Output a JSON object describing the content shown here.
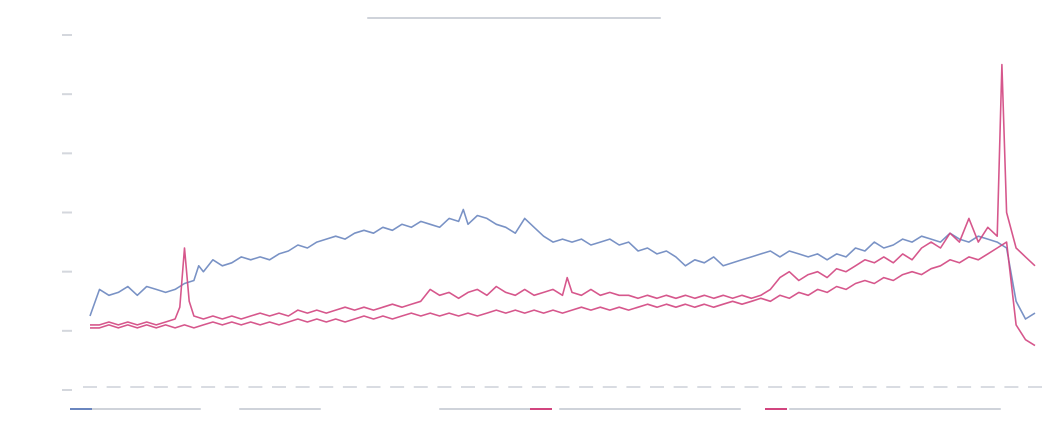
{
  "chart_data": {
    "type": "line",
    "title": "",
    "xlabel": "",
    "ylabel": "",
    "x_range": [
      0,
      1000
    ],
    "ylim": [
      -20,
      100
    ],
    "legend_position": "bottom",
    "colors": {
      "series_1": "#6a86bf",
      "series_2": "#d2457f",
      "series_3": "#d2457f"
    },
    "series": [
      {
        "points": [
          [
            0,
            5
          ],
          [
            10,
            14
          ],
          [
            20,
            12
          ],
          [
            30,
            13
          ],
          [
            40,
            15
          ],
          [
            50,
            12
          ],
          [
            60,
            15
          ],
          [
            70,
            14
          ],
          [
            80,
            13
          ],
          [
            90,
            14
          ],
          [
            100,
            16
          ],
          [
            110,
            17
          ],
          [
            115,
            22
          ],
          [
            120,
            20
          ],
          [
            130,
            24
          ],
          [
            140,
            22
          ],
          [
            150,
            23
          ],
          [
            160,
            25
          ],
          [
            170,
            24
          ],
          [
            180,
            25
          ],
          [
            190,
            24
          ],
          [
            200,
            26
          ],
          [
            210,
            27
          ],
          [
            220,
            29
          ],
          [
            230,
            28
          ],
          [
            240,
            30
          ],
          [
            250,
            31
          ],
          [
            260,
            32
          ],
          [
            270,
            31
          ],
          [
            280,
            33
          ],
          [
            290,
            34
          ],
          [
            300,
            33
          ],
          [
            310,
            35
          ],
          [
            320,
            34
          ],
          [
            330,
            36
          ],
          [
            340,
            35
          ],
          [
            350,
            37
          ],
          [
            360,
            36
          ],
          [
            370,
            35
          ],
          [
            380,
            38
          ],
          [
            390,
            37
          ],
          [
            395,
            41
          ],
          [
            400,
            36
          ],
          [
            410,
            39
          ],
          [
            420,
            38
          ],
          [
            430,
            36
          ],
          [
            440,
            35
          ],
          [
            450,
            33
          ],
          [
            460,
            38
          ],
          [
            470,
            35
          ],
          [
            480,
            32
          ],
          [
            490,
            30
          ],
          [
            500,
            31
          ],
          [
            510,
            30
          ],
          [
            520,
            31
          ],
          [
            530,
            29
          ],
          [
            540,
            30
          ],
          [
            550,
            31
          ],
          [
            560,
            29
          ],
          [
            570,
            30
          ],
          [
            580,
            27
          ],
          [
            590,
            28
          ],
          [
            600,
            26
          ],
          [
            610,
            27
          ],
          [
            620,
            25
          ],
          [
            630,
            22
          ],
          [
            640,
            24
          ],
          [
            650,
            23
          ],
          [
            660,
            25
          ],
          [
            670,
            22
          ],
          [
            680,
            23
          ],
          [
            690,
            24
          ],
          [
            700,
            25
          ],
          [
            710,
            26
          ],
          [
            720,
            27
          ],
          [
            730,
            25
          ],
          [
            740,
            27
          ],
          [
            750,
            26
          ],
          [
            760,
            25
          ],
          [
            770,
            26
          ],
          [
            780,
            24
          ],
          [
            790,
            26
          ],
          [
            800,
            25
          ],
          [
            810,
            28
          ],
          [
            820,
            27
          ],
          [
            830,
            30
          ],
          [
            840,
            28
          ],
          [
            850,
            29
          ],
          [
            860,
            31
          ],
          [
            870,
            30
          ],
          [
            880,
            32
          ],
          [
            890,
            31
          ],
          [
            900,
            30
          ],
          [
            910,
            33
          ],
          [
            920,
            31
          ],
          [
            930,
            30
          ],
          [
            940,
            32
          ],
          [
            950,
            31
          ],
          [
            960,
            30
          ],
          [
            970,
            28
          ],
          [
            980,
            10
          ],
          [
            990,
            4
          ],
          [
            1000,
            6
          ]
        ]
      },
      {
        "points": [
          [
            0,
            2
          ],
          [
            10,
            2
          ],
          [
            20,
            3
          ],
          [
            30,
            2
          ],
          [
            40,
            3
          ],
          [
            50,
            2
          ],
          [
            60,
            3
          ],
          [
            70,
            2
          ],
          [
            80,
            3
          ],
          [
            90,
            4
          ],
          [
            95,
            8
          ],
          [
            100,
            28
          ],
          [
            105,
            10
          ],
          [
            110,
            5
          ],
          [
            120,
            4
          ],
          [
            130,
            5
          ],
          [
            140,
            4
          ],
          [
            150,
            5
          ],
          [
            160,
            4
          ],
          [
            170,
            5
          ],
          [
            180,
            6
          ],
          [
            190,
            5
          ],
          [
            200,
            6
          ],
          [
            210,
            5
          ],
          [
            220,
            7
          ],
          [
            230,
            6
          ],
          [
            240,
            7
          ],
          [
            250,
            6
          ],
          [
            260,
            7
          ],
          [
            270,
            8
          ],
          [
            280,
            7
          ],
          [
            290,
            8
          ],
          [
            300,
            7
          ],
          [
            310,
            8
          ],
          [
            320,
            9
          ],
          [
            330,
            8
          ],
          [
            340,
            9
          ],
          [
            350,
            10
          ],
          [
            360,
            14
          ],
          [
            370,
            12
          ],
          [
            380,
            13
          ],
          [
            390,
            11
          ],
          [
            400,
            13
          ],
          [
            410,
            14
          ],
          [
            420,
            12
          ],
          [
            430,
            15
          ],
          [
            440,
            13
          ],
          [
            450,
            12
          ],
          [
            460,
            14
          ],
          [
            470,
            12
          ],
          [
            480,
            13
          ],
          [
            490,
            14
          ],
          [
            500,
            12
          ],
          [
            505,
            18
          ],
          [
            510,
            13
          ],
          [
            520,
            12
          ],
          [
            530,
            14
          ],
          [
            540,
            12
          ],
          [
            550,
            13
          ],
          [
            560,
            12
          ],
          [
            570,
            12
          ],
          [
            580,
            11
          ],
          [
            590,
            12
          ],
          [
            600,
            11
          ],
          [
            610,
            12
          ],
          [
            620,
            11
          ],
          [
            630,
            12
          ],
          [
            640,
            11
          ],
          [
            650,
            12
          ],
          [
            660,
            11
          ],
          [
            670,
            12
          ],
          [
            680,
            11
          ],
          [
            690,
            12
          ],
          [
            700,
            11
          ],
          [
            710,
            12
          ],
          [
            720,
            14
          ],
          [
            730,
            18
          ],
          [
            740,
            20
          ],
          [
            750,
            17
          ],
          [
            760,
            19
          ],
          [
            770,
            20
          ],
          [
            780,
            18
          ],
          [
            790,
            21
          ],
          [
            800,
            20
          ],
          [
            810,
            22
          ],
          [
            820,
            24
          ],
          [
            830,
            23
          ],
          [
            840,
            25
          ],
          [
            850,
            23
          ],
          [
            860,
            26
          ],
          [
            870,
            24
          ],
          [
            880,
            28
          ],
          [
            890,
            30
          ],
          [
            900,
            28
          ],
          [
            910,
            33
          ],
          [
            920,
            30
          ],
          [
            930,
            38
          ],
          [
            940,
            30
          ],
          [
            950,
            35
          ],
          [
            960,
            32
          ],
          [
            965,
            90
          ],
          [
            970,
            40
          ],
          [
            980,
            28
          ],
          [
            990,
            25
          ],
          [
            1000,
            22
          ]
        ]
      },
      {
        "points": [
          [
            0,
            1
          ],
          [
            10,
            1
          ],
          [
            20,
            2
          ],
          [
            30,
            1
          ],
          [
            40,
            2
          ],
          [
            50,
            1
          ],
          [
            60,
            2
          ],
          [
            70,
            1
          ],
          [
            80,
            2
          ],
          [
            90,
            1
          ],
          [
            100,
            2
          ],
          [
            110,
            1
          ],
          [
            120,
            2
          ],
          [
            130,
            3
          ],
          [
            140,
            2
          ],
          [
            150,
            3
          ],
          [
            160,
            2
          ],
          [
            170,
            3
          ],
          [
            180,
            2
          ],
          [
            190,
            3
          ],
          [
            200,
            2
          ],
          [
            210,
            3
          ],
          [
            220,
            4
          ],
          [
            230,
            3
          ],
          [
            240,
            4
          ],
          [
            250,
            3
          ],
          [
            260,
            4
          ],
          [
            270,
            3
          ],
          [
            280,
            4
          ],
          [
            290,
            5
          ],
          [
            300,
            4
          ],
          [
            310,
            5
          ],
          [
            320,
            4
          ],
          [
            330,
            5
          ],
          [
            340,
            6
          ],
          [
            350,
            5
          ],
          [
            360,
            6
          ],
          [
            370,
            5
          ],
          [
            380,
            6
          ],
          [
            390,
            5
          ],
          [
            400,
            6
          ],
          [
            410,
            5
          ],
          [
            420,
            6
          ],
          [
            430,
            7
          ],
          [
            440,
            6
          ],
          [
            450,
            7
          ],
          [
            460,
            6
          ],
          [
            470,
            7
          ],
          [
            480,
            6
          ],
          [
            490,
            7
          ],
          [
            500,
            6
          ],
          [
            510,
            7
          ],
          [
            520,
            8
          ],
          [
            530,
            7
          ],
          [
            540,
            8
          ],
          [
            550,
            7
          ],
          [
            560,
            8
          ],
          [
            570,
            7
          ],
          [
            580,
            8
          ],
          [
            590,
            9
          ],
          [
            600,
            8
          ],
          [
            610,
            9
          ],
          [
            620,
            8
          ],
          [
            630,
            9
          ],
          [
            640,
            8
          ],
          [
            650,
            9
          ],
          [
            660,
            8
          ],
          [
            670,
            9
          ],
          [
            680,
            10
          ],
          [
            690,
            9
          ],
          [
            700,
            10
          ],
          [
            710,
            11
          ],
          [
            720,
            10
          ],
          [
            730,
            12
          ],
          [
            740,
            11
          ],
          [
            750,
            13
          ],
          [
            760,
            12
          ],
          [
            770,
            14
          ],
          [
            780,
            13
          ],
          [
            790,
            15
          ],
          [
            800,
            14
          ],
          [
            810,
            16
          ],
          [
            820,
            17
          ],
          [
            830,
            16
          ],
          [
            840,
            18
          ],
          [
            850,
            17
          ],
          [
            860,
            19
          ],
          [
            870,
            20
          ],
          [
            880,
            19
          ],
          [
            890,
            21
          ],
          [
            900,
            22
          ],
          [
            910,
            24
          ],
          [
            920,
            23
          ],
          [
            930,
            25
          ],
          [
            940,
            24
          ],
          [
            950,
            26
          ],
          [
            960,
            28
          ],
          [
            970,
            30
          ],
          [
            980,
            2
          ],
          [
            990,
            -3
          ],
          [
            1000,
            -5
          ]
        ]
      }
    ]
  }
}
